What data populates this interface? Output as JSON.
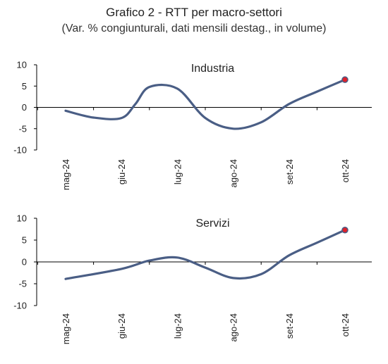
{
  "title": "Grafico 2 - RTT per macro-settori",
  "subtitle": "(Var. % congiunturali, dati mensili destag., in volume)",
  "colors": {
    "line": "#4a5e85",
    "marker": "#e0202a",
    "axis": "#000000",
    "text": "#222222"
  },
  "chart_data": [
    {
      "type": "line",
      "title": "Industria",
      "categories": [
        "mag-24",
        "giu-24",
        "lug-24",
        "ago-24",
        "set-24",
        "ott-24"
      ],
      "x": [
        0,
        0.5,
        1,
        1.25,
        1.5,
        2,
        2.5,
        3,
        3.5,
        4,
        4.5,
        5
      ],
      "y": [
        -0.8,
        -2.4,
        -2.5,
        0.8,
        4.8,
        4.4,
        -2.5,
        -5.0,
        -3.5,
        0.8,
        3.7,
        6.5
      ],
      "ylim": [
        -10,
        10
      ],
      "yticks": [
        10,
        5,
        0,
        -5,
        -10
      ],
      "highlight_last": true,
      "grid": false
    },
    {
      "type": "line",
      "title": "Servizi",
      "categories": [
        "mag-24",
        "giu-24",
        "lug-24",
        "ago-24",
        "set-24",
        "ott-24"
      ],
      "x": [
        0,
        1,
        1.5,
        2,
        2.5,
        3,
        3.5,
        4,
        4.5,
        5
      ],
      "y": [
        -3.9,
        -1.6,
        0.3,
        1.0,
        -1.3,
        -3.7,
        -2.8,
        1.5,
        4.4,
        7.3
      ],
      "ylim": [
        -10,
        10
      ],
      "yticks": [
        10,
        5,
        0,
        -5,
        -10
      ],
      "highlight_last": true,
      "grid": false
    }
  ]
}
